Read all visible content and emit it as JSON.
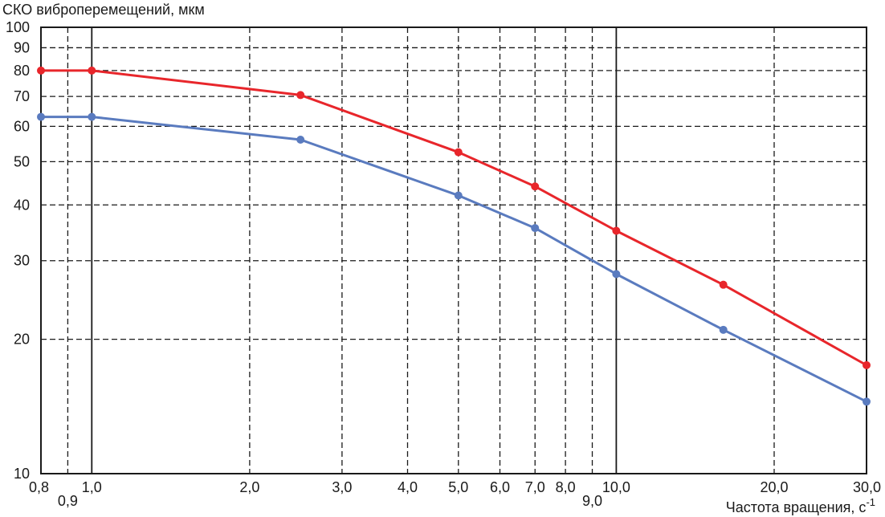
{
  "chart_data": {
    "type": "line",
    "ylabel": "СКО виброперемещений, мкм",
    "xlabel": "Частота вращения, с",
    "xlabel_sup": "-1",
    "x_scale": "log",
    "y_scale": "log",
    "xlim": [
      0.8,
      30
    ],
    "ylim": [
      10,
      100
    ],
    "grid": true,
    "x_ticks": [
      {
        "value": 0.8,
        "label": "0,8",
        "row": "top",
        "major": false
      },
      {
        "value": 0.9,
        "label": "0,9",
        "row": "bottom",
        "major": false
      },
      {
        "value": 1.0,
        "label": "1,0",
        "row": "top",
        "major": true
      },
      {
        "value": 2.0,
        "label": "2,0",
        "row": "top",
        "major": false
      },
      {
        "value": 3.0,
        "label": "3,0",
        "row": "top",
        "major": false
      },
      {
        "value": 4.0,
        "label": "4,0",
        "row": "top",
        "major": false
      },
      {
        "value": 5.0,
        "label": "5,0",
        "row": "top",
        "major": false
      },
      {
        "value": 6.0,
        "label": "6,0",
        "row": "top",
        "major": false
      },
      {
        "value": 7.0,
        "label": "7,0",
        "row": "top",
        "major": false
      },
      {
        "value": 8.0,
        "label": "8,0",
        "row": "top",
        "major": false
      },
      {
        "value": 9.0,
        "label": "9,0",
        "row": "bottom",
        "major": false
      },
      {
        "value": 10.0,
        "label": "10,0",
        "row": "top",
        "major": true
      },
      {
        "value": 20.0,
        "label": "20,0",
        "row": "top",
        "major": false
      },
      {
        "value": 30.0,
        "label": "30,0",
        "row": "top",
        "major": false
      }
    ],
    "y_ticks": [
      {
        "value": 10,
        "label": "10"
      },
      {
        "value": 20,
        "label": "20"
      },
      {
        "value": 30,
        "label": "30"
      },
      {
        "value": 40,
        "label": "40"
      },
      {
        "value": 50,
        "label": "50"
      },
      {
        "value": 60,
        "label": "60"
      },
      {
        "value": 70,
        "label": "70"
      },
      {
        "value": 80,
        "label": "80"
      },
      {
        "value": 90,
        "label": "90"
      },
      {
        "value": 100,
        "label": "100"
      }
    ],
    "series": [
      {
        "color": "#e8262b",
        "points": [
          [
            0.8,
            80
          ],
          [
            1.0,
            80
          ],
          [
            2.5,
            70.5
          ],
          [
            5.0,
            52.5
          ],
          [
            7.0,
            44
          ],
          [
            10.0,
            35
          ],
          [
            16.0,
            26.5
          ],
          [
            30.0,
            17.5
          ]
        ]
      },
      {
        "color": "#5a7bbf",
        "points": [
          [
            0.8,
            63
          ],
          [
            1.0,
            63
          ],
          [
            2.5,
            56
          ],
          [
            5.0,
            42
          ],
          [
            7.0,
            35.5
          ],
          [
            10.0,
            28
          ],
          [
            16.0,
            21
          ],
          [
            30.0,
            14.5
          ]
        ]
      }
    ]
  }
}
